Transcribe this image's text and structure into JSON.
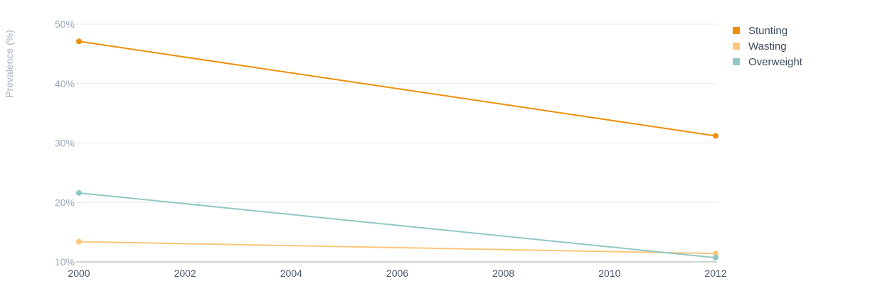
{
  "chart_data": {
    "type": "line",
    "title": "",
    "xlabel": "",
    "ylabel": "Prevalence (%)",
    "x_ticks": [
      "2000",
      "2002",
      "2004",
      "2006",
      "2008",
      "2010",
      "2012"
    ],
    "y_ticks": [
      "10%",
      "20%",
      "30%",
      "40%",
      "50%"
    ],
    "xlim": [
      2000,
      2012
    ],
    "ylim": [
      10,
      50
    ],
    "grid": "horizontal",
    "legend_position": "top-right",
    "series": [
      {
        "name": "Stunting",
        "color": "#ee8f0b",
        "points": [
          [
            2000,
            47.1
          ],
          [
            2012,
            31.2
          ]
        ]
      },
      {
        "name": "Wasting",
        "color": "#fcc67b",
        "points": [
          [
            2000,
            13.4
          ],
          [
            2012,
            11.4
          ]
        ]
      },
      {
        "name": "Overweight",
        "color": "#91c8c3",
        "points": [
          [
            2000,
            21.6
          ],
          [
            2012,
            10.7
          ]
        ]
      }
    ]
  }
}
